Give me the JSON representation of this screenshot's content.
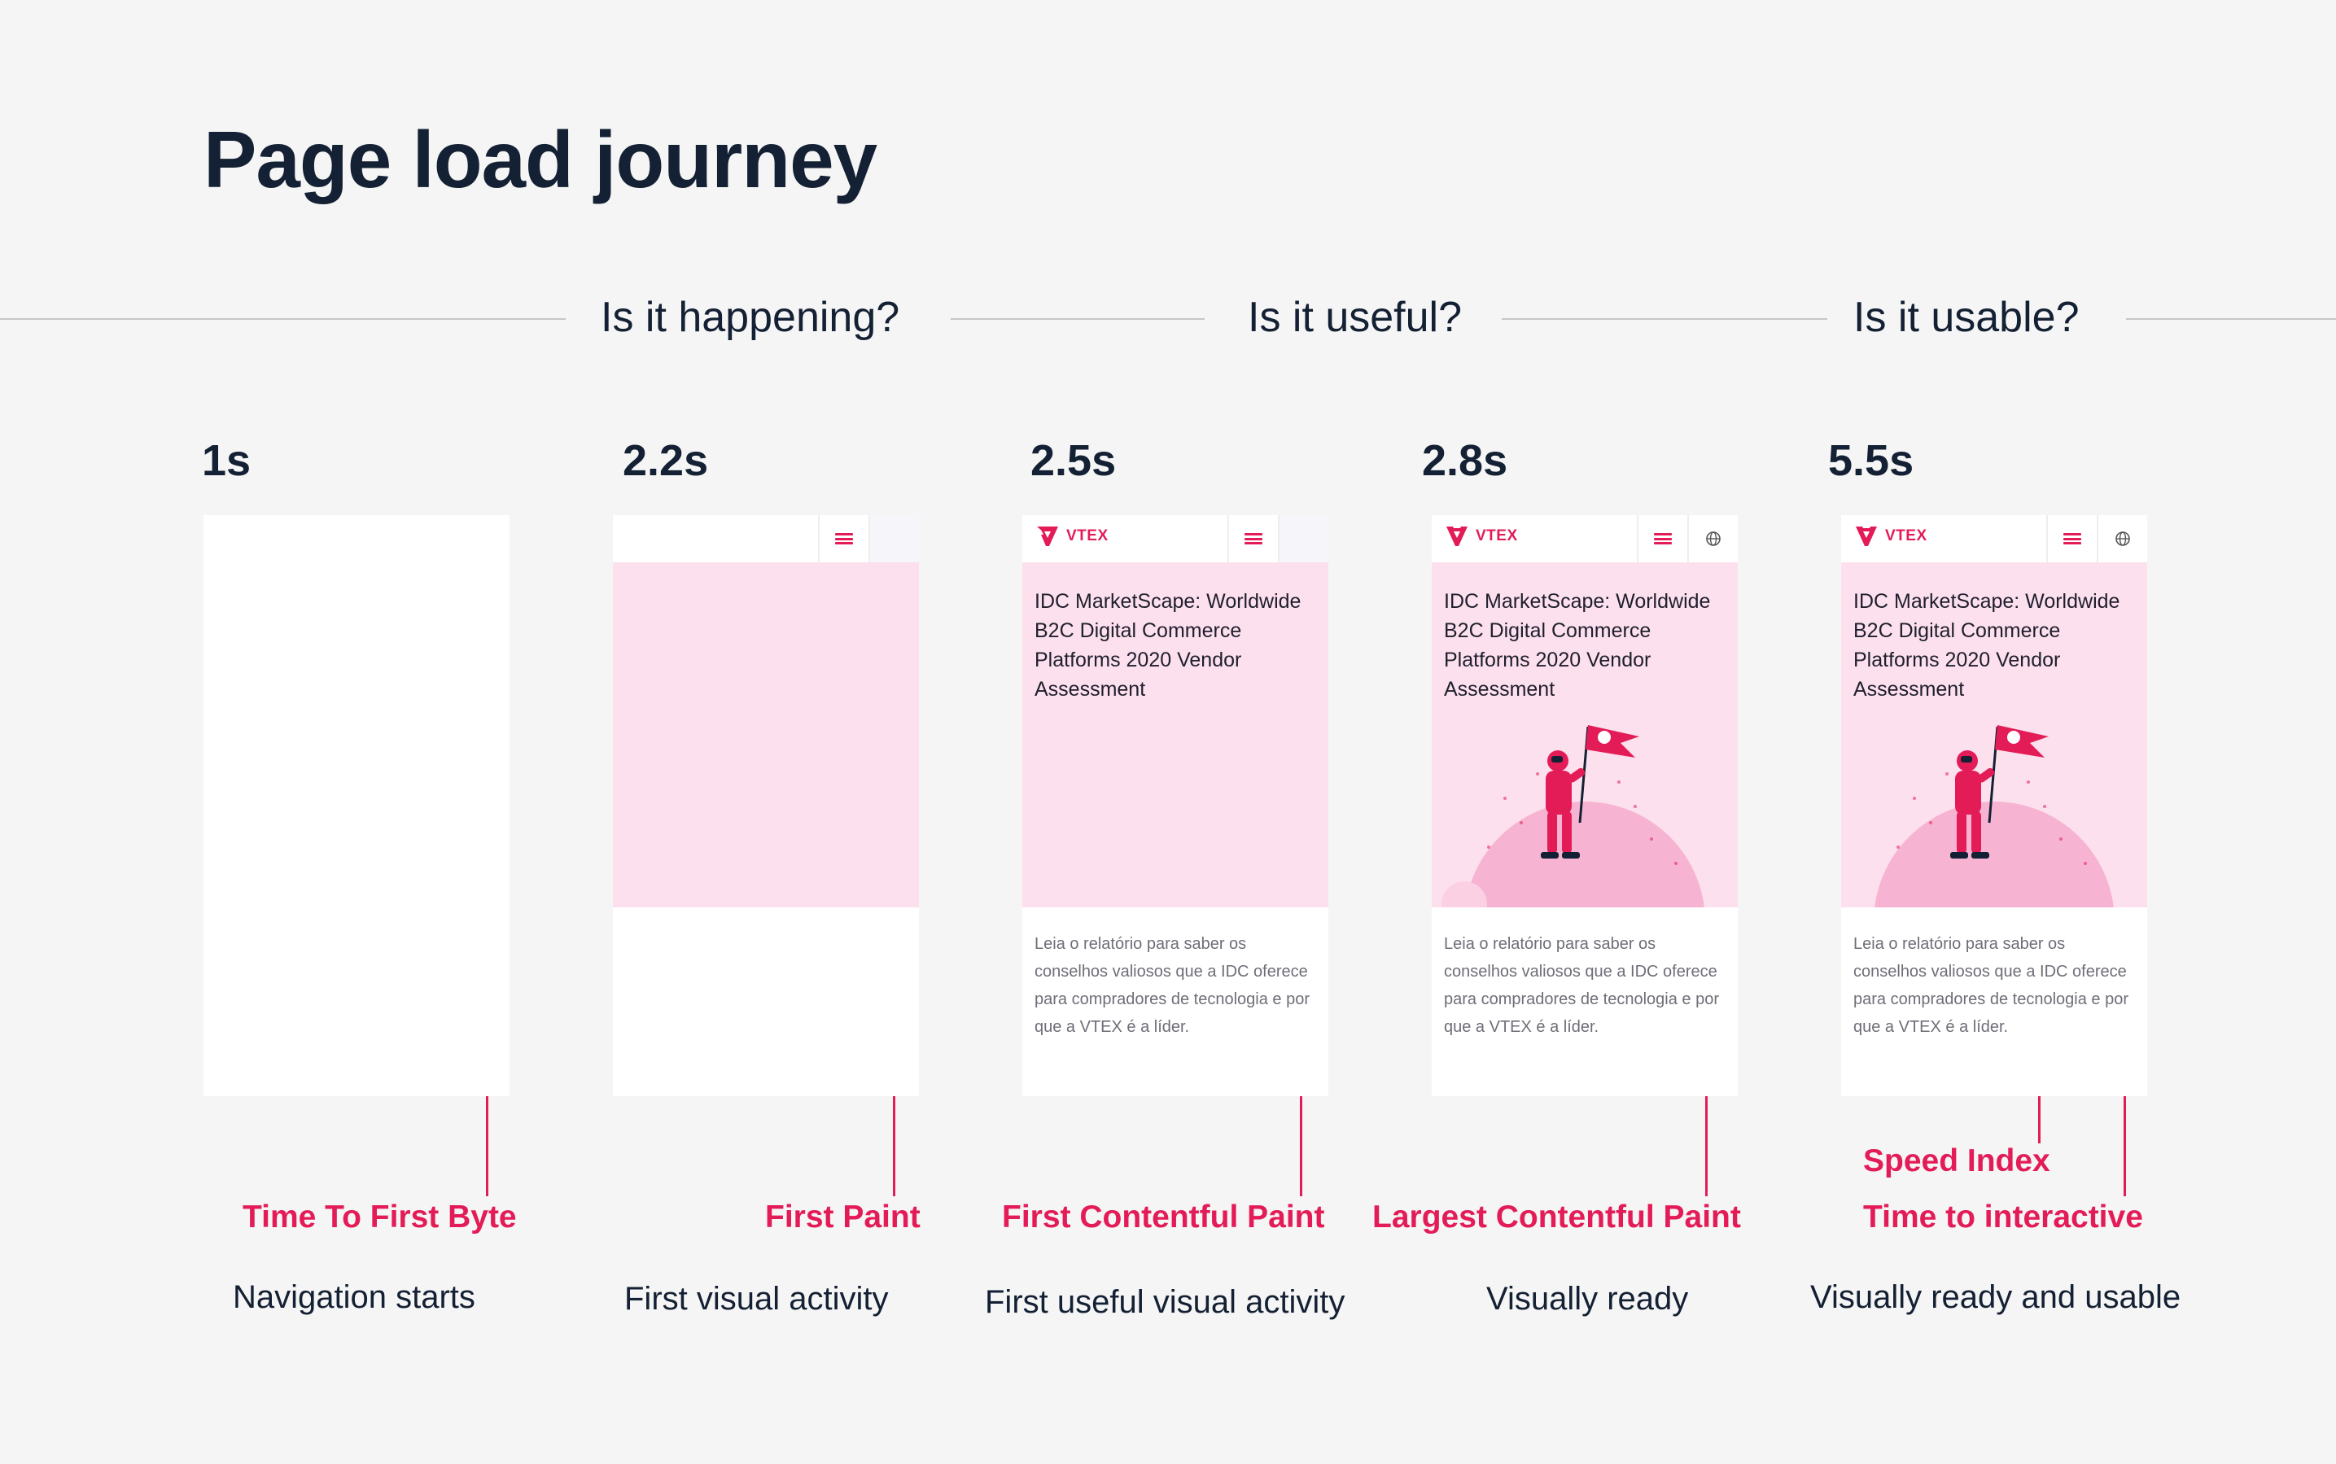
{
  "title": "Page load journey",
  "phases": [
    "Is it happening?",
    "Is it useful?",
    "Is it usable?"
  ],
  "stages": [
    {
      "time": "1s",
      "metric": "Time To First Byte",
      "caption": "Navigation starts"
    },
    {
      "time": "2.2s",
      "metric": "First Paint",
      "caption": "First visual activity"
    },
    {
      "time": "2.5s",
      "metric": "First Contentful Paint",
      "caption": "First useful visual activity"
    },
    {
      "time": "2.8s",
      "metric": "Largest Contentful Paint",
      "caption": "Visually ready"
    },
    {
      "time": "5.5s",
      "metric_1": "Speed Index",
      "metric_2": "Time to interactive",
      "caption": "Visually ready and usable"
    }
  ],
  "frame": {
    "logo": "VTEX",
    "hero_title": "IDC MarketScape: Worldwide B2C Digital Commerce Platforms 2020 Vendor Assessment",
    "description": "Leia o relatório para saber os conselhos valiosos que a IDC oferece para compradores de tecnologia e por que a VTEX é a líder."
  },
  "colors": {
    "accent": "#e31c58",
    "text": "#142033",
    "hero_bg": "#fde0ed",
    "page_bg": "#f5f5f5"
  }
}
